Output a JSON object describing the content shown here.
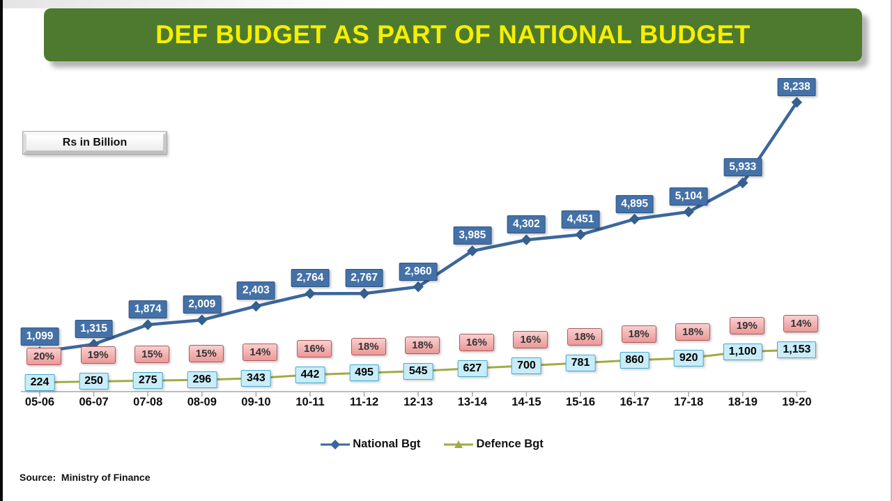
{
  "title": {
    "text": "DEF BUDGET AS PART OF NATIONAL BUDGET"
  },
  "unit_label": "Rs in Billion",
  "source": "Source:  Ministry of Finance",
  "colors": {
    "banner_bg": "#4d7a2e",
    "banner_text": "#f6ef00",
    "national_line": "#3c679c",
    "national_box_bg": "#4471a7",
    "defence_line": "#a0ab41",
    "pct_box_bg": "#f2a6a6",
    "pct_box_border": "#a85a5a",
    "defence_box_bg": "#c9edf8",
    "defence_box_border": "#44a8cc",
    "axis": "#a6a6a6"
  },
  "chart_data": {
    "type": "line",
    "title": "DEF BUDGET AS PART OF NATIONAL BUDGET",
    "xlabel": "",
    "ylabel": "Rs in Billion",
    "ylim": [
      0,
      8900
    ],
    "grid": false,
    "legend_position": "bottom",
    "categories": [
      "05-06",
      "06-07",
      "07-08",
      "08-09",
      "09-10",
      "10-11",
      "11-12",
      "12-13",
      "13-14",
      "14-15",
      "15-16",
      "16-17",
      "17-18",
      "18-19",
      "19-20"
    ],
    "series": [
      {
        "name": "National Bgt",
        "color": "#3c679c",
        "marker": "diamond",
        "values": [
          1099,
          1315,
          1874,
          2009,
          2403,
          2764,
          2767,
          2960,
          3985,
          4302,
          4451,
          4895,
          5104,
          5933,
          8238
        ],
        "labels": [
          "1,099",
          "1,315",
          "1,874",
          "2,009",
          "2,403",
          "2,764",
          "2,767",
          "2,960",
          "3,985",
          "4,302",
          "4,451",
          "4,895",
          "5,104",
          "5,933",
          "8,238"
        ]
      },
      {
        "name": "Defence Bgt",
        "color": "#a0ab41",
        "marker": "triangle",
        "values": [
          224,
          250,
          275,
          296,
          343,
          442,
          495,
          545,
          627,
          700,
          781,
          860,
          920,
          1100,
          1153
        ],
        "labels": [
          "224",
          "250",
          "275",
          "296",
          "343",
          "442",
          "495",
          "545",
          "627",
          "700",
          "781",
          "860",
          "920",
          "1,100",
          "1,153"
        ]
      }
    ],
    "pct_labels": [
      "20%",
      "19%",
      "15%",
      "15%",
      "14%",
      "16%",
      "18%",
      "18%",
      "16%",
      "16%",
      "18%",
      "18%",
      "18%",
      "19%",
      "14%"
    ]
  }
}
